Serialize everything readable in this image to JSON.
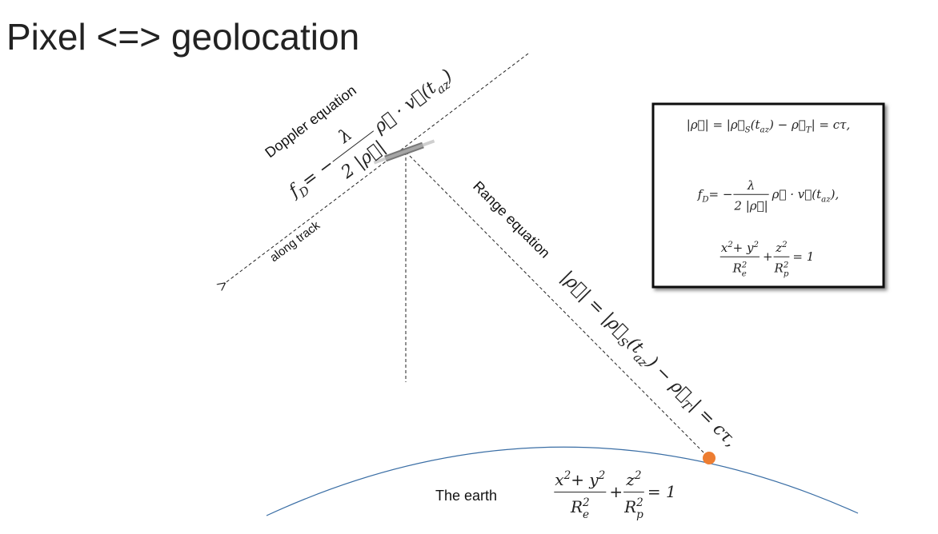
{
  "title": "Pixel <=> geolocation",
  "labels": {
    "doppler": "Doppler equation",
    "along_track": "along track",
    "range": "Range equation",
    "earth": "The earth"
  },
  "equations": {
    "box": [
      [
        "|ρ⃗| = |ρ⃗",
        {
          "sub": "S"
        },
        "(t",
        {
          "sub": "az"
        },
        ") − ρ⃗",
        {
          "sub": "T"
        },
        "| = cτ,"
      ],
      [
        "f",
        {
          "sub": "D"
        },
        " = −",
        {
          "frac": [
            [
              "λ"
            ],
            [
              "2 |ρ⃗|"
            ]
          ]
        },
        "ρ⃗ · v⃗(t",
        {
          "sub": "az"
        },
        "),"
      ],
      [
        {
          "frac": [
            [
              "x",
              {
                "sup": "2"
              },
              " + y",
              {
                "sup": "2"
              }
            ],
            [
              "R",
              {
                "subsup": [
                  "e",
                  "2"
                ]
              }
            ]
          ]
        },
        " + ",
        {
          "frac": [
            [
              "z",
              {
                "sup": "2"
              }
            ],
            [
              "R",
              {
                "subsup": [
                  "p",
                  "2"
                ]
              }
            ]
          ]
        },
        " = 1"
      ]
    ],
    "doppler": [
      "f",
      {
        "sub": "D"
      },
      " = −",
      {
        "frac": [
          [
            "λ"
          ],
          [
            "2 |ρ⃗|"
          ]
        ]
      },
      "ρ⃗ · v⃗(t",
      {
        "sub": "az"
      },
      ")"
    ],
    "range": [
      "|ρ⃗| = |ρ⃗",
      {
        "sub": "S"
      },
      "(t",
      {
        "sub": "az"
      },
      ") − ρ⃗",
      {
        "sub": "T"
      },
      "| = cτ,"
    ],
    "earth": [
      {
        "frac": [
          [
            "x",
            {
              "sup": "2"
            },
            " + y",
            {
              "sup": "2"
            }
          ],
          [
            "R",
            {
              "subsup": [
                "e",
                "2"
              ]
            }
          ]
        ]
      },
      " + ",
      {
        "frac": [
          [
            "z",
            {
              "sup": "2"
            }
          ],
          [
            "R",
            {
              "subsup": [
                "p",
                "2"
              ]
            }
          ]
        ]
      },
      " = 1"
    ]
  }
}
